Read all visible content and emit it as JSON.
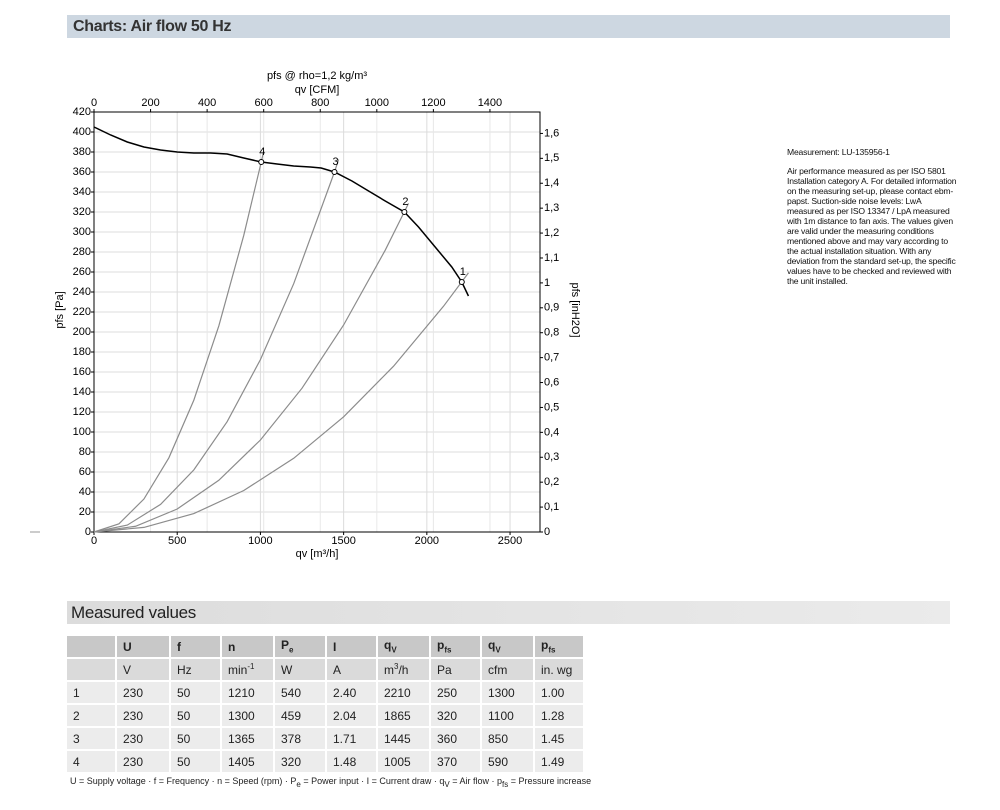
{
  "header": {
    "title": "Charts: Air flow 50 Hz"
  },
  "chart_data": {
    "type": "line",
    "title": "pfs @ rho=1,2 kg/m³",
    "x_label": "qv [m³/h]",
    "x2_label": "qv [CFM]",
    "y_label": "pfs [Pa]",
    "y2_label": "pfs [inH2O]",
    "xlim": [
      0,
      2680
    ],
    "xticks": [
      0,
      500,
      1000,
      1500,
      2000,
      2500
    ],
    "x2lim": [
      0,
      1577
    ],
    "x2ticks": [
      0,
      200,
      400,
      600,
      800,
      1000,
      1200,
      1400
    ],
    "ylim": [
      0,
      420
    ],
    "yticks": [
      0,
      20,
      40,
      60,
      80,
      100,
      120,
      140,
      160,
      180,
      200,
      220,
      240,
      260,
      280,
      300,
      320,
      340,
      360,
      380,
      400,
      420
    ],
    "y2lim": [
      0,
      1.686
    ],
    "y2ticks": [
      0,
      {
        "value": 0.1,
        "label": "0,1"
      },
      {
        "value": 0.2,
        "label": "0,2"
      },
      {
        "value": 0.3,
        "label": "0,3"
      },
      {
        "value": 0.4,
        "label": "0,4"
      },
      {
        "value": 0.5,
        "label": "0,5"
      },
      {
        "value": 0.6,
        "label": "0,6"
      },
      {
        "value": 0.7,
        "label": "0,7"
      },
      {
        "value": 0.8,
        "label": "0,8"
      },
      {
        "value": 0.9,
        "label": "0,9"
      },
      1,
      {
        "value": 1.1,
        "label": "1,1"
      },
      {
        "value": 1.2,
        "label": "1,2"
      },
      {
        "value": 1.3,
        "label": "1,3"
      },
      {
        "value": 1.4,
        "label": "1,4"
      },
      {
        "value": 1.5,
        "label": "1,5"
      },
      {
        "value": 1.6,
        "label": "1,6"
      }
    ],
    "grid": true,
    "series": [
      {
        "color": "#000000",
        "x": [
          0,
          100,
          200,
          300,
          400,
          500,
          600,
          700,
          800,
          900,
          1005,
          1100,
          1200,
          1300,
          1365,
          1445,
          1550,
          1650,
          1750,
          1865,
          1950,
          2050,
          2150,
          2210,
          2250
        ],
        "values": [
          405,
          397,
          390,
          385,
          382,
          380,
          379,
          379,
          378,
          374,
          370,
          368,
          366,
          365,
          364,
          360,
          351,
          341,
          331,
          320,
          305,
          285,
          265,
          250,
          236
        ]
      },
      {
        "color": "#8c8c8c",
        "x": [
          0,
          300,
          600,
          900,
          1200,
          1500,
          1800,
          2100,
          2250
        ],
        "values": [
          0,
          4.6,
          18.4,
          41.5,
          73.7,
          115.2,
          165.8,
          225.7,
          259.1
        ]
      },
      {
        "color": "#8c8c8c",
        "x": [
          0,
          250,
          500,
          750,
          1000,
          1250,
          1500,
          1750,
          1890
        ],
        "values": [
          0,
          5.75,
          23.0,
          51.7,
          92.0,
          143.8,
          207.0,
          281.8,
          328.6
        ]
      },
      {
        "color": "#8c8c8c",
        "x": [
          0,
          200,
          400,
          600,
          800,
          1000,
          1200,
          1445,
          1470
        ],
        "values": [
          0,
          6.9,
          27.6,
          62.1,
          110.3,
          172.4,
          248.3,
          360,
          372.6
        ]
      },
      {
        "color": "#8c8c8c",
        "x": [
          0,
          150,
          300,
          450,
          600,
          750,
          900,
          1005,
          1020
        ],
        "values": [
          0,
          8.2,
          33.0,
          74.2,
          131.9,
          206.1,
          296.7,
          370,
          381.1
        ]
      }
    ],
    "operating_points": {
      "labels": [
        "1",
        "2",
        "3",
        "4"
      ],
      "x": [
        2210,
        1865,
        1445,
        1005
      ],
      "values": [
        250,
        320,
        360,
        370
      ]
    }
  },
  "measurement": {
    "id": "Measurement: LU-135956-1",
    "note": "Air performance measured as per ISO 5801 Installation category A. For detailed information on the measuring set-up, please contact ebm-papst. Suction-side noise levels: LwA measured as per ISO 13347 / LpA measured with 1m distance to fan axis. The values given are valid under the measuring conditions mentioned above and may vary according to the actual installation situation. With any deviation from the standard set-up, the specific values have to be checked and reviewed with the unit installed."
  },
  "measured_values": {
    "title": "Measured values",
    "header": [
      "",
      "U",
      "f",
      "n",
      {
        "base": "P",
        "sub": "e"
      },
      "I",
      {
        "base": "q",
        "sub": "V"
      },
      {
        "base": "p",
        "sub": "fs"
      },
      {
        "base": "q",
        "sub": "V"
      },
      {
        "base": "p",
        "sub": "fs"
      }
    ],
    "units": [
      "",
      "V",
      "Hz",
      {
        "base": "min",
        "sup": "-1"
      },
      "W",
      "A",
      {
        "base": "m",
        "sup": "3",
        "tail": "/h"
      },
      "Pa",
      "cfm",
      "in. wg"
    ],
    "rows": [
      [
        "1",
        "230",
        "50",
        "1210",
        "540",
        "2.40",
        "2210",
        "250",
        "1300",
        "1.00"
      ],
      [
        "2",
        "230",
        "50",
        "1300",
        "459",
        "2.04",
        "1865",
        "320",
        "1100",
        "1.28"
      ],
      [
        "3",
        "230",
        "50",
        "1365",
        "378",
        "1.71",
        "1445",
        "360",
        "850",
        "1.45"
      ],
      [
        "4",
        "230",
        "50",
        "1405",
        "320",
        "1.48",
        "1005",
        "370",
        "590",
        "1.49"
      ]
    ],
    "legend_separator": " · ",
    "legend": [
      {
        "base": "U = Supply voltage"
      },
      {
        "base": "f = Frequency"
      },
      {
        "base": "n = Speed (rpm)"
      },
      {
        "base": "P",
        "sub": "e",
        "tail": " = Power input"
      },
      {
        "base": "I = Current draw"
      },
      {
        "base": "q",
        "sub": "V",
        "tail": " = Air flow"
      },
      {
        "base": "p",
        "sub": "fs",
        "tail": " = Pressure increase"
      }
    ]
  }
}
